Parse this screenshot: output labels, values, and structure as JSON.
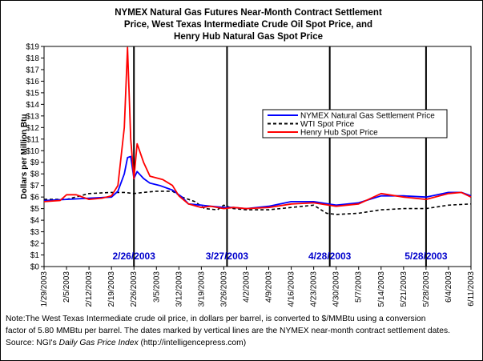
{
  "title": {
    "line1": "NYMEX Natural Gas Futures Near-Month Contract Settlement",
    "line2": "Price, West Texas Intermediate Crude Oil Spot Price, and",
    "line3": "Henry Hub Natural Gas Spot Price"
  },
  "note": {
    "line1": "Note:The West Texas Intermediate crude oil price, in dollars per barrel,  is converted to $/MMBtu using a conversion",
    "line2": "factor of 5.80 MMBtu per barrel.  The dates marked by vertical lines are the NYMEX near-month contract settlement dates.",
    "line3_prefix": "Source:  NGI's ",
    "line3_italic": "Daily Gas Price Index",
    "line3_suffix": " (http://intelligencepress.com)"
  },
  "colors": {
    "nymex": "#0000ff",
    "wti": "#000000",
    "henry_hub": "#ff0000",
    "settlement_label": "#0000cc"
  },
  "chart_data": {
    "type": "line",
    "title": "NYMEX Natural Gas Futures Near-Month Contract Settlement Price, West Texas Intermediate Crude Oil Spot Price, and Henry Hub Natural Gas Spot Price",
    "ylabel": "Dollars per Million Btu",
    "xlabel": "",
    "ylim": [
      0,
      19
    ],
    "y_ticks": [
      "$0",
      "$1",
      "$2",
      "$3",
      "$4",
      "$5",
      "$6",
      "$7",
      "$8",
      "$9",
      "$10",
      "$11",
      "$12",
      "$13",
      "$14",
      "$15",
      "$16",
      "$17",
      "$18",
      "$19"
    ],
    "x_ticks": [
      "1/29/2003",
      "2/5/2003",
      "2/12/2003",
      "2/19/2003",
      "2/26/2003",
      "3/5/2003",
      "3/12/2003",
      "3/19/2003",
      "3/26/2003",
      "4/2/2003",
      "4/9/2003",
      "4/16/2003",
      "4/23/2003",
      "4/30/2003",
      "5/7/2003",
      "5/14/2003",
      "5/21/2003",
      "5/28/2003",
      "6/4/2003",
      "6/11/2003"
    ],
    "x_start": "1/29/2003",
    "x_end": "6/11/2003",
    "grid": false,
    "legend_position": "right",
    "vertical_lines": [
      {
        "date": "2/26/2003",
        "label": "2/26/2003"
      },
      {
        "date": "3/27/2003",
        "label": "3/27/2003"
      },
      {
        "date": "4/28/2003",
        "label": "4/28/2003"
      },
      {
        "date": "5/28/2003",
        "label": "5/28/2003"
      }
    ],
    "series": [
      {
        "name": "NYMEX Natural Gas Settlement Price",
        "style": "solid",
        "points": [
          [
            "1/29/2003",
            5.7
          ],
          [
            "2/5/2003",
            5.8
          ],
          [
            "2/12/2003",
            5.9
          ],
          [
            "2/19/2003",
            6.0
          ],
          [
            "2/21/2003",
            6.5
          ],
          [
            "2/23/2003",
            8.0
          ],
          [
            "2/24/2003",
            9.4
          ],
          [
            "2/25/2003",
            9.5
          ],
          [
            "2/26/2003",
            7.6
          ],
          [
            "2/27/2003",
            8.2
          ],
          [
            "3/1/2003",
            7.6
          ],
          [
            "3/3/2003",
            7.2
          ],
          [
            "3/6/2003",
            7.0
          ],
          [
            "3/10/2003",
            6.6
          ],
          [
            "3/13/2003",
            6.0
          ],
          [
            "3/15/2003",
            5.4
          ],
          [
            "3/19/2003",
            5.3
          ],
          [
            "3/22/2003",
            5.2
          ],
          [
            "3/26/2003",
            5.1
          ],
          [
            "3/29/2003",
            5.1
          ],
          [
            "4/2/2003",
            5.0
          ],
          [
            "4/9/2003",
            5.2
          ],
          [
            "4/16/2003",
            5.6
          ],
          [
            "4/23/2003",
            5.6
          ],
          [
            "4/30/2003",
            5.3
          ],
          [
            "5/7/2003",
            5.5
          ],
          [
            "5/14/2003",
            6.1
          ],
          [
            "5/21/2003",
            6.1
          ],
          [
            "5/28/2003",
            6.0
          ],
          [
            "6/4/2003",
            6.4
          ],
          [
            "6/8/2003",
            6.4
          ],
          [
            "6/11/2003",
            6.1
          ]
        ]
      },
      {
        "name": "WTI Spot Price",
        "style": "dashed",
        "points": [
          [
            "1/29/2003",
            5.8
          ],
          [
            "2/5/2003",
            5.8
          ],
          [
            "2/12/2003",
            6.3
          ],
          [
            "2/19/2003",
            6.4
          ],
          [
            "2/23/2003",
            6.4
          ],
          [
            "2/26/2003",
            6.3
          ],
          [
            "3/1/2003",
            6.4
          ],
          [
            "3/5/2003",
            6.5
          ],
          [
            "3/10/2003",
            6.5
          ],
          [
            "3/13/2003",
            6.0
          ],
          [
            "3/17/2003",
            5.6
          ],
          [
            "3/20/2003",
            5.0
          ],
          [
            "3/24/2003",
            4.9
          ],
          [
            "3/26/2003",
            5.3
          ],
          [
            "3/29/2003",
            5.0
          ],
          [
            "4/2/2003",
            4.9
          ],
          [
            "4/9/2003",
            4.9
          ],
          [
            "4/16/2003",
            5.1
          ],
          [
            "4/23/2003",
            5.3
          ],
          [
            "4/27/2003",
            4.6
          ],
          [
            "4/30/2003",
            4.5
          ],
          [
            "5/7/2003",
            4.6
          ],
          [
            "5/14/2003",
            4.9
          ],
          [
            "5/21/2003",
            5.0
          ],
          [
            "5/28/2003",
            5.0
          ],
          [
            "6/4/2003",
            5.3
          ],
          [
            "6/11/2003",
            5.4
          ]
        ]
      },
      {
        "name": "Henry Hub Spot Price",
        "style": "solid",
        "points": [
          [
            "1/29/2003",
            5.6
          ],
          [
            "2/3/2003",
            5.7
          ],
          [
            "2/5/2003",
            6.2
          ],
          [
            "2/8/2003",
            6.2
          ],
          [
            "2/12/2003",
            5.8
          ],
          [
            "2/16/2003",
            5.9
          ],
          [
            "2/19/2003",
            6.1
          ],
          [
            "2/21/2003",
            7.0
          ],
          [
            "2/23/2003",
            12.0
          ],
          [
            "2/24/2003",
            18.9
          ],
          [
            "2/25/2003",
            11.0
          ],
          [
            "2/26/2003",
            7.6
          ],
          [
            "2/27/2003",
            10.6
          ],
          [
            "3/1/2003",
            9.0
          ],
          [
            "3/3/2003",
            7.8
          ],
          [
            "3/7/2003",
            7.5
          ],
          [
            "3/10/2003",
            7.0
          ],
          [
            "3/12/2003",
            6.1
          ],
          [
            "3/15/2003",
            5.4
          ],
          [
            "3/19/2003",
            5.1
          ],
          [
            "3/22/2003",
            5.2
          ],
          [
            "3/26/2003",
            5.0
          ],
          [
            "3/29/2003",
            5.1
          ],
          [
            "4/2/2003",
            5.0
          ],
          [
            "4/9/2003",
            5.1
          ],
          [
            "4/16/2003",
            5.4
          ],
          [
            "4/23/2003",
            5.5
          ],
          [
            "4/30/2003",
            5.2
          ],
          [
            "5/7/2003",
            5.4
          ],
          [
            "5/14/2003",
            6.3
          ],
          [
            "5/21/2003",
            6.0
          ],
          [
            "5/28/2003",
            5.8
          ],
          [
            "6/4/2003",
            6.3
          ],
          [
            "6/8/2003",
            6.4
          ],
          [
            "6/11/2003",
            6.0
          ]
        ]
      }
    ]
  }
}
